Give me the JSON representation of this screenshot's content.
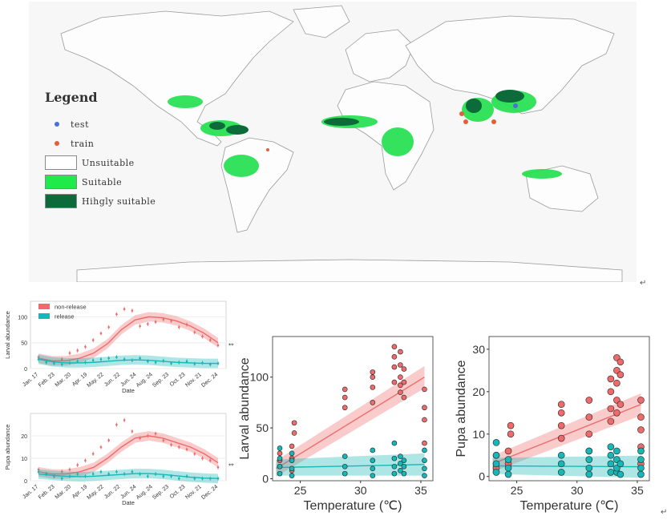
{
  "map": {
    "legend": {
      "title": "Legend",
      "items": [
        {
          "label": "test",
          "kind": "dot",
          "color": "#4a6fd8"
        },
        {
          "label": "train",
          "kind": "dot",
          "color": "#e0603a"
        },
        {
          "label": "Unsuitable",
          "kind": "box",
          "color": "#ffffff"
        },
        {
          "label": "Suitable",
          "kind": "box",
          "color": "#1eea4a"
        },
        {
          "label": "Hihgly suitable",
          "kind": "box",
          "color": "#0d6b3a"
        }
      ]
    }
  },
  "para_mark": "↵",
  "chart_data": [
    {
      "type": "line",
      "panel": "larval-time",
      "xlabel": "Date",
      "ylabel": "Larval abundance",
      "categories": [
        "Jan. 17",
        "Feb. 23",
        "Mar. 20",
        "Apr. 19",
        "May. 22",
        "Jun. 22",
        "Jun. 24",
        "Aug. 24",
        "Sep. 23",
        "Oct. 23",
        "Nov. 21",
        "Dec. 24"
      ],
      "ylim": [
        0,
        130
      ],
      "yticks": [
        0,
        50,
        100
      ],
      "annotation": "***",
      "legend": {
        "position": "top-left",
        "entries": [
          "non-release",
          "release"
        ]
      },
      "series": [
        {
          "name": "non-release",
          "color": "#ef6b6b",
          "fit": [
            20,
            15,
            15,
            20,
            30,
            48,
            75,
            94,
            100,
            98,
            92,
            82,
            68,
            50
          ],
          "points": [
            22,
            14,
            12,
            18,
            30,
            35,
            42,
            55,
            68,
            80,
            105,
            115,
            112,
            82,
            86,
            90,
            95,
            92,
            80,
            85,
            70,
            62,
            55,
            45
          ]
        },
        {
          "name": "release",
          "color": "#17b7b7",
          "fit": [
            18,
            13,
            11,
            11,
            12,
            14,
            16,
            17,
            16,
            14,
            12,
            11,
            10,
            10
          ],
          "points": [
            18,
            12,
            10,
            8,
            11,
            14,
            12,
            16,
            18,
            20,
            22,
            18,
            16,
            20,
            14,
            12,
            15,
            10,
            12,
            14,
            9,
            11,
            8,
            10
          ]
        }
      ]
    },
    {
      "type": "line",
      "panel": "pupa-time",
      "xlabel": "Date",
      "ylabel": "Pupa abundance",
      "categories": [
        "Jan. 17",
        "Feb. 23",
        "Mar. 20",
        "Apr. 19",
        "May. 22",
        "Jun. 22",
        "Jun. 24",
        "Aug. 24",
        "Sep. 23",
        "Oct. 23",
        "Nov. 21",
        "Dec. 24"
      ],
      "ylim": [
        0,
        30
      ],
      "yticks": [
        0,
        10,
        20
      ],
      "annotation": "***",
      "series": [
        {
          "name": "non-release",
          "color": "#ef6b6b",
          "fit": [
            4,
            3,
            3,
            4,
            6,
            10,
            15,
            19,
            20,
            19,
            17,
            15,
            12,
            8
          ],
          "points": [
            5,
            3,
            2,
            4,
            5,
            7,
            9,
            12,
            15,
            18,
            25,
            27,
            22,
            19,
            20,
            21,
            18,
            16,
            15,
            14,
            12,
            10,
            9,
            6
          ]
        },
        {
          "name": "release",
          "color": "#17b7b7",
          "fit": [
            3,
            2.4,
            2,
            1.8,
            2,
            2.4,
            2.8,
            3.2,
            3.2,
            2.8,
            2.2,
            1.6,
            1.2,
            1
          ],
          "points": [
            4,
            3,
            2,
            1,
            2,
            3,
            2,
            3,
            4,
            3,
            4,
            3,
            4,
            3,
            2,
            3,
            2,
            2,
            1,
            2,
            1,
            1,
            1,
            1
          ]
        }
      ]
    },
    {
      "type": "scatter",
      "panel": "larval-temperature",
      "xlabel": "Temperature (℃)",
      "ylabel": "Larval abundance",
      "xlim": [
        22.7,
        36
      ],
      "ylim": [
        -2,
        140
      ],
      "xticks": [
        25,
        30,
        35
      ],
      "yticks": [
        0,
        50,
        100
      ],
      "series": [
        {
          "name": "non-release",
          "color": "#ef6b6b",
          "fit_start": [
            23,
            10
          ],
          "fit_end": [
            35.3,
            100
          ],
          "points": [
            [
              23.3,
              12
            ],
            [
              23.3,
              18
            ],
            [
              23.3,
              25
            ],
            [
              24.3,
              8
            ],
            [
              24.3,
              20
            ],
            [
              24.3,
              32
            ],
            [
              24.5,
              45
            ],
            [
              24.5,
              55
            ],
            [
              28.7,
              70
            ],
            [
              28.7,
              80
            ],
            [
              28.7,
              88
            ],
            [
              31,
              75
            ],
            [
              31,
              90
            ],
            [
              31,
              100
            ],
            [
              31,
              105
            ],
            [
              32.8,
              95
            ],
            [
              32.8,
              110
            ],
            [
              32.8,
              120
            ],
            [
              32.8,
              130
            ],
            [
              33.3,
              85
            ],
            [
              33.3,
              92
            ],
            [
              33.3,
              100
            ],
            [
              33.3,
              112
            ],
            [
              33.3,
              125
            ],
            [
              33.6,
              80
            ],
            [
              33.6,
              95
            ],
            [
              33.6,
              108
            ],
            [
              35.3,
              35
            ],
            [
              35.3,
              58
            ],
            [
              35.3,
              70
            ],
            [
              35.3,
              88
            ]
          ]
        },
        {
          "name": "release",
          "color": "#17b7b7",
          "fit_start": [
            23,
            11
          ],
          "fit_end": [
            35.3,
            14
          ],
          "points": [
            [
              23.3,
              5
            ],
            [
              23.3,
              12
            ],
            [
              23.3,
              20
            ],
            [
              23.3,
              30
            ],
            [
              24.3,
              3
            ],
            [
              24.3,
              10
            ],
            [
              24.3,
              18
            ],
            [
              24.3,
              25
            ],
            [
              28.7,
              5
            ],
            [
              28.7,
              12
            ],
            [
              28.7,
              22
            ],
            [
              31,
              3
            ],
            [
              31,
              10
            ],
            [
              31,
              18
            ],
            [
              31,
              28
            ],
            [
              32.8,
              5
            ],
            [
              32.8,
              12
            ],
            [
              32.8,
              20
            ],
            [
              32.8,
              35
            ],
            [
              33.3,
              8
            ],
            [
              33.3,
              15
            ],
            [
              33.3,
              22
            ],
            [
              33.6,
              5
            ],
            [
              33.6,
              12
            ],
            [
              33.6,
              18
            ],
            [
              35.3,
              3
            ],
            [
              35.3,
              10
            ],
            [
              35.3,
              18
            ],
            [
              35.3,
              28
            ]
          ]
        }
      ]
    },
    {
      "type": "scatter",
      "panel": "pupa-temperature",
      "xlabel": "Temperature (℃)",
      "ylabel": "Pupa abundance",
      "xlim": [
        22.7,
        36
      ],
      "ylim": [
        -1,
        33
      ],
      "xticks": [
        25,
        30,
        35
      ],
      "yticks": [
        0,
        10,
        20,
        30
      ],
      "series": [
        {
          "name": "non-release",
          "color": "#ef6b6b",
          "fit_start": [
            23,
            3
          ],
          "fit_end": [
            35.3,
            17
          ],
          "points": [
            [
              23.3,
              2
            ],
            [
              23.3,
              5
            ],
            [
              24.3,
              3
            ],
            [
              24.3,
              6
            ],
            [
              24.5,
              10
            ],
            [
              24.5,
              12
            ],
            [
              28.7,
              9
            ],
            [
              28.7,
              12
            ],
            [
              28.7,
              15
            ],
            [
              28.7,
              17
            ],
            [
              31,
              6
            ],
            [
              31,
              10
            ],
            [
              31,
              14
            ],
            [
              31,
              18
            ],
            [
              32.8,
              13
            ],
            [
              32.8,
              16
            ],
            [
              32.8,
              20
            ],
            [
              32.8,
              23
            ],
            [
              33.3,
              15
            ],
            [
              33.3,
              18
            ],
            [
              33.3,
              22
            ],
            [
              33.3,
              25
            ],
            [
              33.3,
              28
            ],
            [
              33.6,
              17
            ],
            [
              33.6,
              24
            ],
            [
              33.6,
              27
            ],
            [
              35.3,
              3
            ],
            [
              35.3,
              7
            ],
            [
              35.3,
              11
            ],
            [
              35.3,
              14
            ],
            [
              35.3,
              18
            ]
          ]
        },
        {
          "name": "release",
          "color": "#17b7b7",
          "fit_start": [
            23,
            2.5
          ],
          "fit_end": [
            35.3,
            2.3
          ],
          "points": [
            [
              23.3,
              1
            ],
            [
              23.3,
              3
            ],
            [
              23.3,
              5
            ],
            [
              23.3,
              8
            ],
            [
              24.3,
              0.5
            ],
            [
              24.3,
              2
            ],
            [
              24.3,
              4
            ],
            [
              28.7,
              1
            ],
            [
              28.7,
              3
            ],
            [
              28.7,
              5
            ],
            [
              31,
              0.5
            ],
            [
              31,
              2
            ],
            [
              31,
              4
            ],
            [
              31,
              6
            ],
            [
              32.8,
              1
            ],
            [
              32.8,
              3
            ],
            [
              32.8,
              5
            ],
            [
              32.8,
              7
            ],
            [
              33.3,
              1
            ],
            [
              33.3,
              2
            ],
            [
              33.3,
              4
            ],
            [
              33.3,
              6
            ],
            [
              33.6,
              0.5
            ],
            [
              33.6,
              3
            ],
            [
              35.3,
              0.5
            ],
            [
              35.3,
              2
            ],
            [
              35.3,
              4
            ],
            [
              35.3,
              6
            ]
          ]
        }
      ]
    }
  ]
}
